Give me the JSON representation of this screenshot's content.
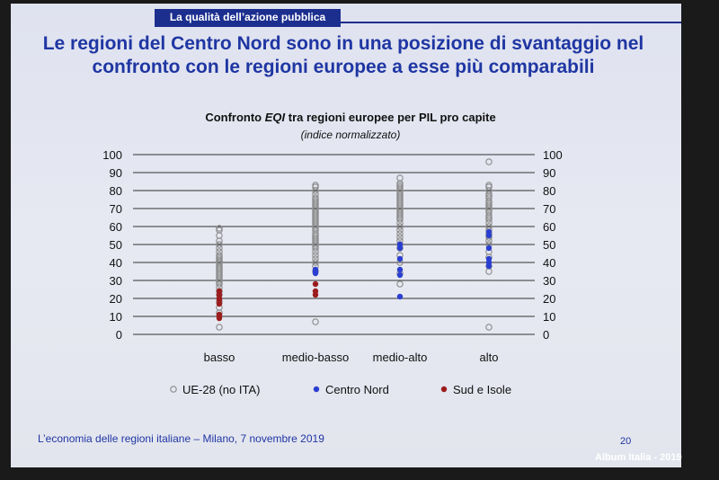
{
  "header": {
    "section_label": "La qualità dell’azione pubblica"
  },
  "slide": {
    "title": "Le regioni del Centro Nord sono in una posizione di svantaggio nel confronto con le regioni europee a esse più comparabili",
    "footer": "L’economia delle regioni italiane – Milano, 7 novembre 2019",
    "page_number": "20"
  },
  "watermark": "Album Italia - 2019",
  "chart_data": {
    "type": "scatter",
    "title": "Confronto EQI tra regioni europee per PIL pro capite",
    "title_plain": "Confronto ",
    "title_italic": "EQI",
    "title_rest": " tra regioni europee per PIL pro capite",
    "subtitle": "(indice normalizzato)",
    "xlabel": "",
    "ylabel": "",
    "categories": [
      "basso",
      "medio-basso",
      "medio-alto",
      "alto"
    ],
    "ylim": [
      0,
      100
    ],
    "yticks": [
      0,
      10,
      20,
      30,
      40,
      50,
      60,
      70,
      80,
      90,
      100
    ],
    "grid": true,
    "legend_position": "bottom",
    "series": [
      {
        "name": "UE-28 (no ITA)",
        "marker": "hollow",
        "color": "#8a8a8a",
        "values": [
          [
            4,
            12,
            15,
            18,
            22,
            24,
            26,
            28,
            29,
            30,
            31,
            32,
            33,
            34,
            35,
            36,
            37,
            37,
            38,
            39,
            40,
            40,
            41,
            41,
            42,
            43,
            44,
            46,
            48,
            50,
            52,
            55,
            58,
            59
          ],
          [
            7,
            35,
            38,
            40,
            42,
            44,
            46,
            48,
            49,
            50,
            51,
            52,
            53,
            54,
            55,
            56,
            58,
            59,
            60,
            61,
            62,
            63,
            64,
            65,
            66,
            67,
            68,
            69,
            70,
            71,
            72,
            73,
            74,
            75,
            76,
            78,
            80,
            82,
            83
          ],
          [
            28,
            34,
            40,
            44,
            48,
            50,
            52,
            54,
            56,
            58,
            60,
            62,
            64,
            65,
            66,
            67,
            68,
            69,
            70,
            71,
            72,
            73,
            74,
            75,
            76,
            77,
            78,
            79,
            80,
            81,
            82,
            83,
            84,
            87
          ],
          [
            4,
            35,
            38,
            43,
            46,
            50,
            52,
            54,
            55,
            56,
            58,
            60,
            62,
            64,
            65,
            66,
            68,
            69,
            70,
            71,
            72,
            73,
            74,
            76,
            77,
            78,
            80,
            82,
            83,
            96
          ]
        ]
      },
      {
        "name": "Centro Nord",
        "marker": "filled",
        "color": "#2a3fd0",
        "values": [
          [],
          [
            34,
            35,
            36
          ],
          [
            21,
            33,
            36,
            42,
            48,
            50
          ],
          [
            38,
            40,
            42,
            48,
            55,
            57
          ]
        ]
      },
      {
        "name": "Sud e Isole",
        "marker": "filled",
        "color": "#9b1c1c",
        "values": [
          [
            9,
            10,
            11,
            17,
            19,
            20,
            22,
            24
          ],
          [
            22,
            24,
            28
          ],
          [],
          []
        ]
      }
    ]
  }
}
